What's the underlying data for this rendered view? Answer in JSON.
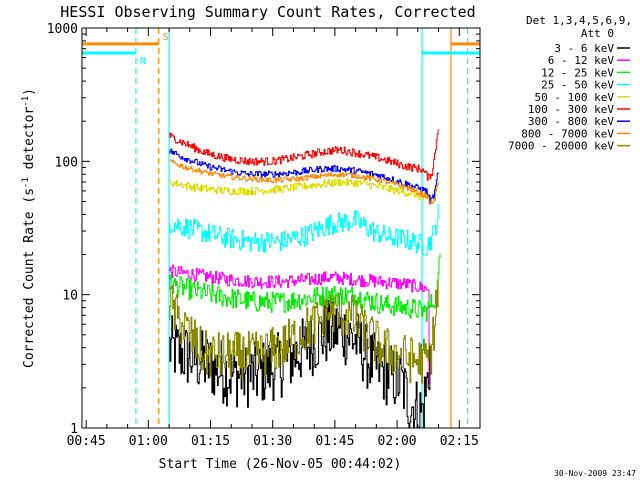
{
  "chart_data": {
    "type": "line",
    "title": "HESSI Observing Summary Count Rates, Corrected",
    "xlabel": "Start Time (26-Nov-05 00:44:02)",
    "ylabel_prefix": "Corrected Count Rate (s",
    "ylabel_sup1": "-1",
    "ylabel_middle": " detector",
    "ylabel_sup2": "-1",
    "ylabel_suffix": ")",
    "x_unit": "minutes since 00:44:02",
    "xlim": [
      0,
      96
    ],
    "x_ticks": [
      {
        "t": 1,
        "label": "00:45"
      },
      {
        "t": 16,
        "label": "01:00"
      },
      {
        "t": 31,
        "label": "01:15"
      },
      {
        "t": 46,
        "label": "01:30"
      },
      {
        "t": 61,
        "label": "01:45"
      },
      {
        "t": 76,
        "label": "02:00"
      },
      {
        "t": 91,
        "label": "02:15"
      }
    ],
    "yscale": "log",
    "ylim": [
      1,
      1000
    ],
    "y_ticks": [
      {
        "v": 1,
        "label": "1"
      },
      {
        "v": 10,
        "label": "10"
      },
      {
        "v": 100,
        "label": "100"
      },
      {
        "v": 1000,
        "label": "1000"
      }
    ],
    "legend": {
      "placement": "right",
      "header_line1": "Det 1,3,4,5,6,9,",
      "header_line2": "Att 0"
    },
    "series": [
      {
        "name": "3 - 6 keV",
        "color": "#000000",
        "noise": 0.25,
        "points": [
          [
            21,
            4
          ],
          [
            25,
            3.5
          ],
          [
            30,
            3
          ],
          [
            36,
            2.5
          ],
          [
            42,
            2.5
          ],
          [
            48,
            3
          ],
          [
            54,
            4
          ],
          [
            58,
            5
          ],
          [
            62,
            5.5
          ],
          [
            66,
            4.5
          ],
          [
            70,
            3
          ],
          [
            74,
            2.5
          ],
          [
            77,
            2.2
          ],
          [
            79,
            1.5
          ],
          [
            82,
            1.3
          ],
          [
            83.5,
            2.5
          ],
          [
            84,
            4
          ]
        ]
      },
      {
        "name": "6 - 12 keV",
        "color": "#ff00ff",
        "noise": 0.05,
        "points": [
          [
            21,
            15
          ],
          [
            28,
            14
          ],
          [
            35,
            13
          ],
          [
            42,
            12.5
          ],
          [
            48,
            12.5
          ],
          [
            55,
            13
          ],
          [
            60,
            13.5
          ],
          [
            66,
            13
          ],
          [
            72,
            12.5
          ],
          [
            78,
            12
          ],
          [
            83.5,
            11
          ],
          [
            83.8,
            1
          ]
        ]
      },
      {
        "name": "12 - 25 keV",
        "color": "#00ee00",
        "noise": 0.08,
        "points": [
          [
            21,
            12
          ],
          [
            28,
            10.5
          ],
          [
            35,
            9.5
          ],
          [
            42,
            8.8
          ],
          [
            48,
            8.8
          ],
          [
            55,
            9.5
          ],
          [
            60,
            10
          ],
          [
            66,
            9.8
          ],
          [
            72,
            8.5
          ],
          [
            78,
            8
          ],
          [
            83,
            7.5
          ],
          [
            85.5,
            10
          ],
          [
            86.5,
            22
          ]
        ]
      },
      {
        "name": "25 - 50 keV",
        "color": "#00ffff",
        "noise": 0.08,
        "points": [
          [
            21,
            35
          ],
          [
            28,
            30
          ],
          [
            34,
            27
          ],
          [
            40,
            25
          ],
          [
            48,
            25
          ],
          [
            54,
            28
          ],
          [
            60,
            34
          ],
          [
            66,
            36
          ],
          [
            70,
            30
          ],
          [
            74,
            27
          ],
          [
            78,
            26
          ],
          [
            83,
            23
          ],
          [
            84.5,
            27
          ],
          [
            86,
            42
          ]
        ]
      },
      {
        "name": "50 - 100 keV",
        "color": "#dddd00",
        "noise": 0.03,
        "points": [
          [
            21,
            70
          ],
          [
            28,
            63
          ],
          [
            35,
            60
          ],
          [
            42,
            60
          ],
          [
            50,
            63
          ],
          [
            57,
            67
          ],
          [
            62,
            70
          ],
          [
            68,
            68
          ],
          [
            74,
            62
          ],
          [
            80,
            57
          ],
          [
            83,
            52
          ],
          [
            84.5,
            55
          ],
          [
            86,
            75
          ]
        ]
      },
      {
        "name": "100 - 300 keV",
        "color": "#ff0000",
        "noise": 0.03,
        "points": [
          [
            21,
            155
          ],
          [
            25,
            135
          ],
          [
            30,
            115
          ],
          [
            35,
            105
          ],
          [
            40,
            100
          ],
          [
            46,
            100
          ],
          [
            52,
            108
          ],
          [
            58,
            118
          ],
          [
            62,
            122
          ],
          [
            66,
            116
          ],
          [
            72,
            105
          ],
          [
            78,
            92
          ],
          [
            82,
            87
          ],
          [
            83.5,
            75
          ],
          [
            84.5,
            85
          ],
          [
            86,
            195
          ]
        ]
      },
      {
        "name": "300 - 800 keV",
        "color": "#0000ff",
        "noise": 0.025,
        "points": [
          [
            21,
            120
          ],
          [
            25,
            105
          ],
          [
            30,
            92
          ],
          [
            35,
            85
          ],
          [
            40,
            80
          ],
          [
            46,
            80
          ],
          [
            52,
            83
          ],
          [
            58,
            88
          ],
          [
            62,
            88
          ],
          [
            66,
            85
          ],
          [
            72,
            78
          ],
          [
            78,
            68
          ],
          [
            83,
            60
          ],
          [
            84,
            50
          ],
          [
            85,
            57
          ],
          [
            86,
            90
          ]
        ]
      },
      {
        "name": "800 - 7000 keV",
        "color": "#ff8800",
        "noise": 0.02,
        "points": [
          [
            21,
            100
          ],
          [
            25,
            90
          ],
          [
            30,
            82
          ],
          [
            35,
            77
          ],
          [
            40,
            74
          ],
          [
            46,
            72
          ],
          [
            52,
            74
          ],
          [
            58,
            78
          ],
          [
            62,
            80
          ],
          [
            66,
            78
          ],
          [
            72,
            72
          ],
          [
            78,
            64
          ],
          [
            83,
            55
          ],
          [
            84,
            48
          ],
          [
            85,
            52
          ],
          [
            86,
            75
          ]
        ]
      },
      {
        "name": "7000 - 20000 keV",
        "color": "#888800",
        "noise": 0.18,
        "points": [
          [
            21,
            9
          ],
          [
            23,
            6.5
          ],
          [
            26,
            5
          ],
          [
            28,
            4
          ],
          [
            30,
            3.5
          ],
          [
            36,
            3.5
          ],
          [
            42,
            3.5
          ],
          [
            48,
            4
          ],
          [
            52,
            5
          ],
          [
            56,
            6
          ],
          [
            60,
            7.5
          ],
          [
            64,
            7
          ],
          [
            68,
            5.5
          ],
          [
            72,
            4
          ],
          [
            76,
            3.5
          ],
          [
            80,
            3.2
          ],
          [
            83,
            3.2
          ],
          [
            84,
            3.5
          ],
          [
            85,
            6
          ],
          [
            86,
            12
          ]
        ]
      }
    ],
    "state_markers": [
      {
        "label": "N",
        "color": "#00ffff"
      },
      {
        "label": "S",
        "color": "#ff8800"
      }
    ],
    "vertical_lines": [
      {
        "t": 13,
        "color": "#00ffff",
        "style": "dashed"
      },
      {
        "t": 18.5,
        "color": "#ff8800",
        "style": "dashed"
      },
      {
        "t": 21,
        "color": "#00ffff",
        "style": "solid"
      },
      {
        "t": 82,
        "color": "#00ffff",
        "style": "solid"
      },
      {
        "t": 89,
        "color": "#ff8800",
        "style": "solid"
      },
      {
        "t": 93,
        "color": "#00ffff",
        "style": "dashed"
      }
    ],
    "status_bars": [
      {
        "color": "#00ffff",
        "y": 650,
        "segments": [
          [
            0,
            13
          ],
          [
            82,
            96
          ]
        ]
      },
      {
        "color": "#ff8800",
        "y": 760,
        "segments": [
          [
            0,
            18.5
          ],
          [
            89,
            96
          ]
        ]
      }
    ],
    "grid": false,
    "footer_timestamp": "30-Nov-2009 23:47"
  }
}
